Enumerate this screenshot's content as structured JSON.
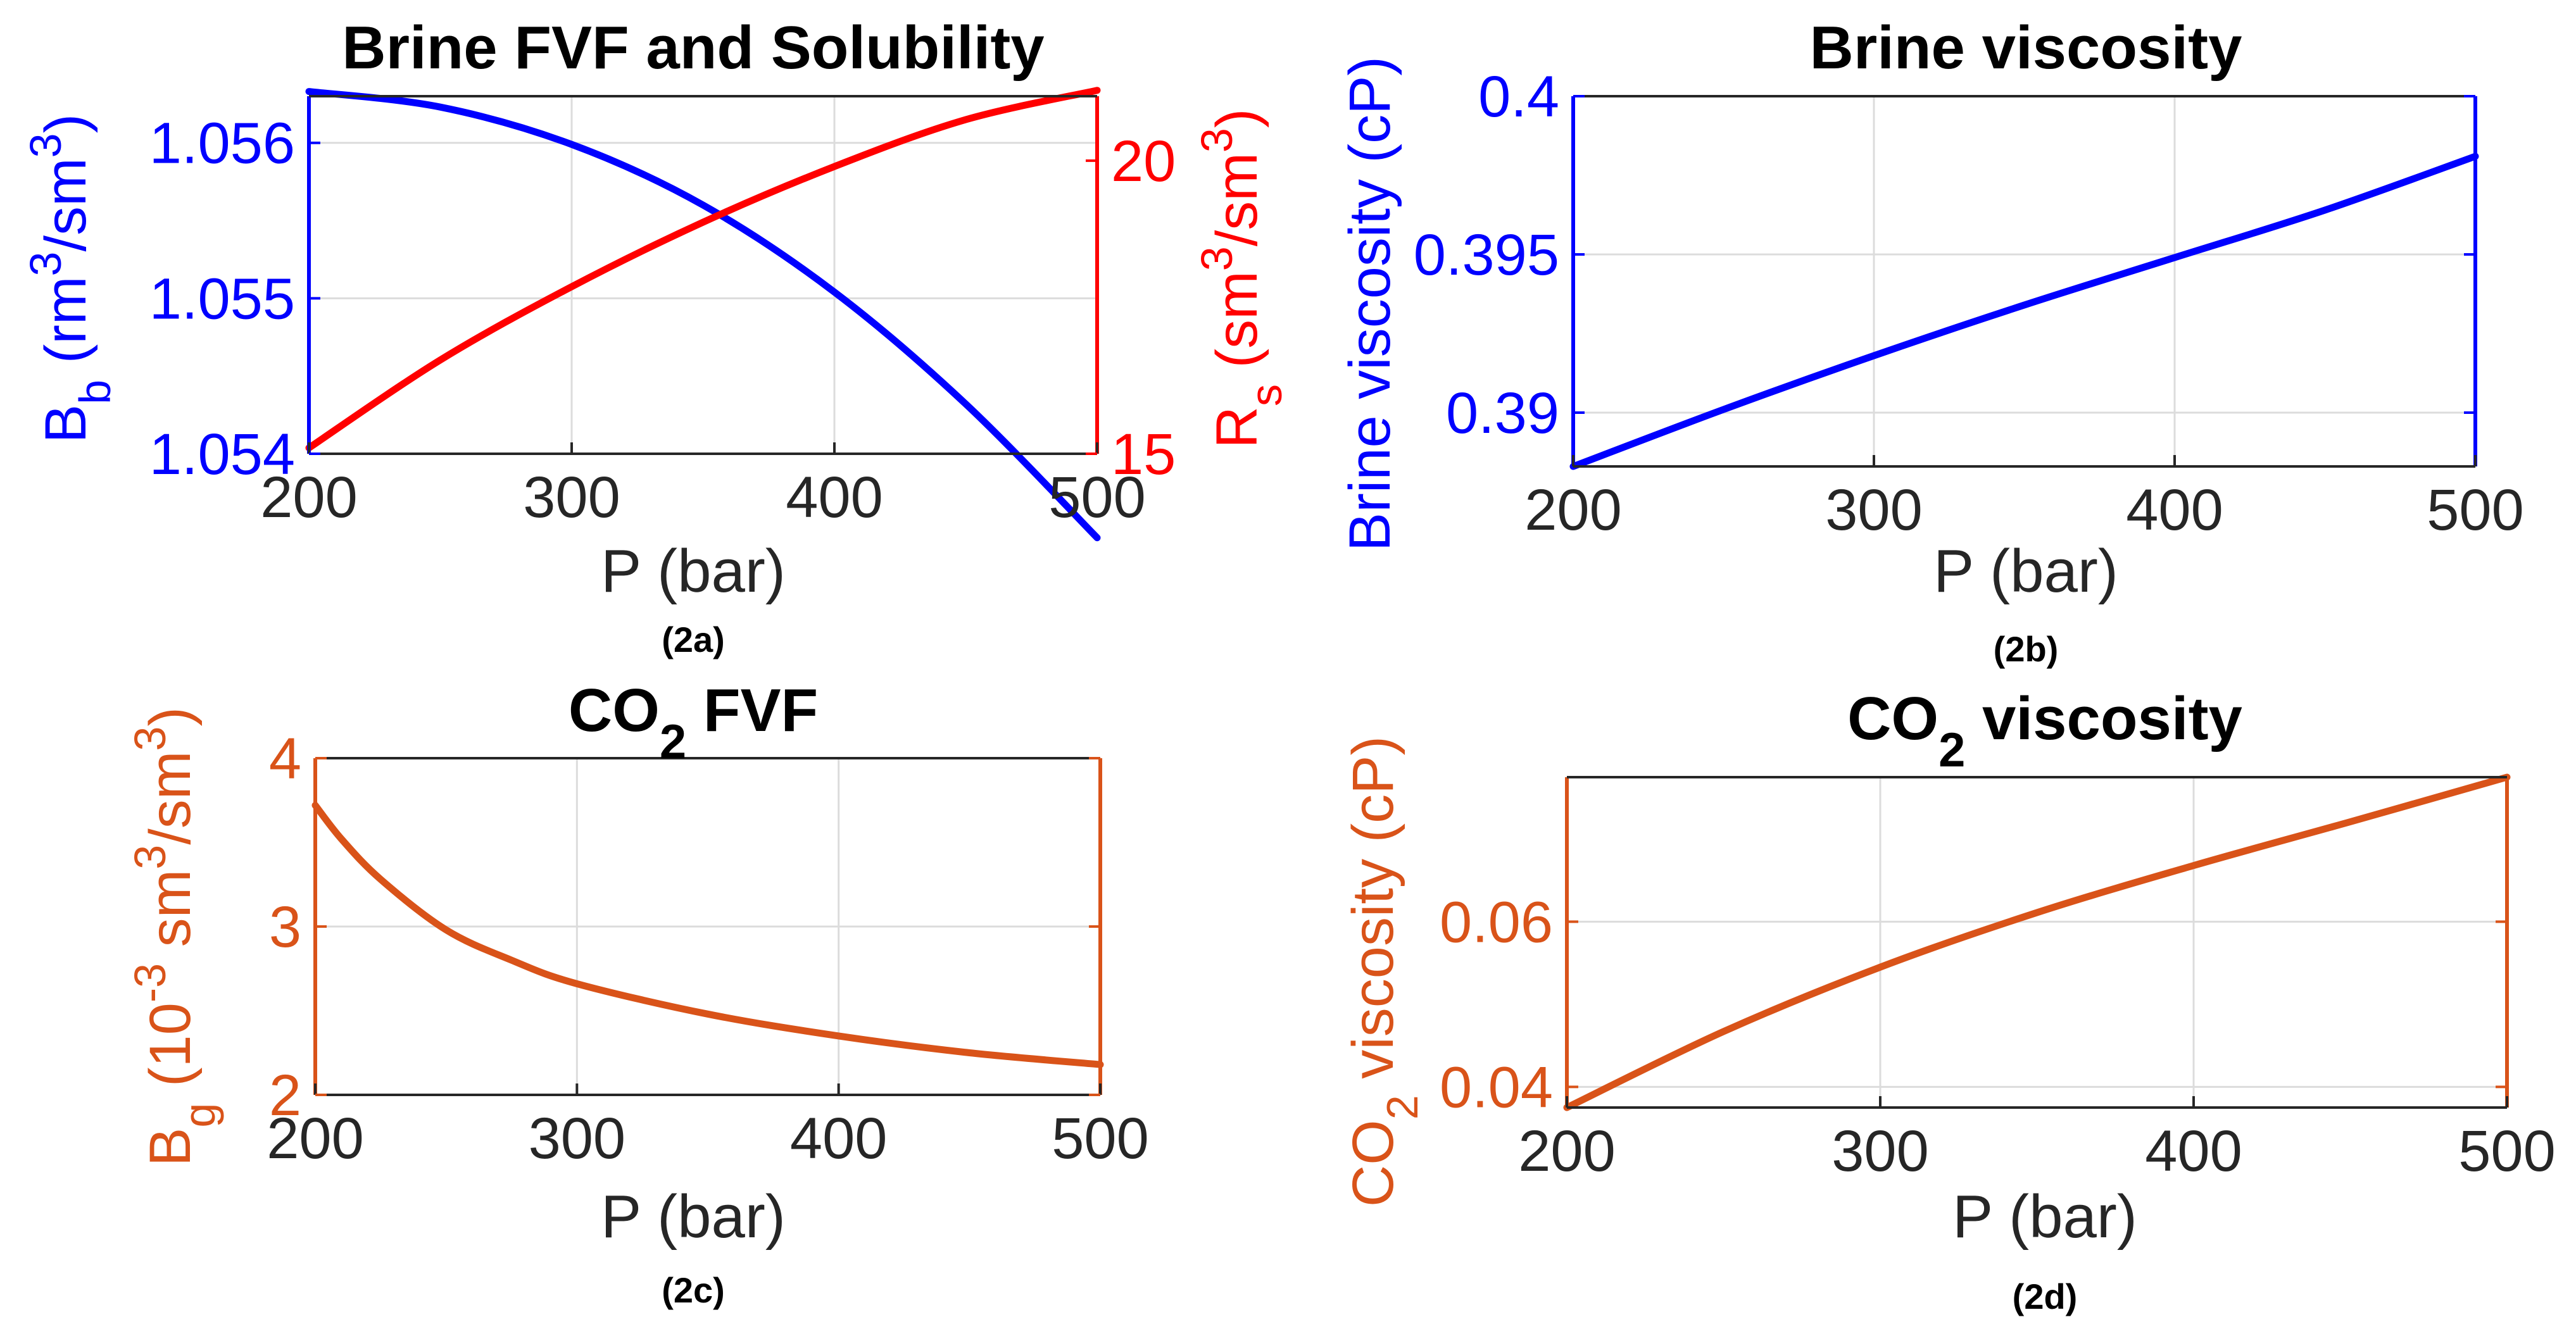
{
  "colors": {
    "blue": "#0000ff",
    "red": "#ff0000",
    "orange": "#d95319",
    "text": "#262626"
  },
  "chart_data": [
    {
      "id": "a",
      "type": "line",
      "title": "Brine FVF and Solubility",
      "caption": "(2a)",
      "xlabel": "P (bar)",
      "x_ticks": [
        "200",
        "300",
        "400",
        "500"
      ],
      "xlim": [
        200,
        500
      ],
      "ylabel_left": {
        "main": "B",
        "sub": "b",
        "rest": " (rm",
        "sup": "3",
        "tail": "/sm",
        "sup2": "3",
        "end": ")"
      },
      "y_left_ticks": [
        "1.054",
        "1.055",
        "1.056"
      ],
      "ylim_left": [
        1.054,
        1.0563
      ],
      "ylabel_right": {
        "main": "R",
        "sub": "s",
        "rest": " (sm",
        "sup": "3",
        "tail": "/sm",
        "sup2": "3",
        "end": ")"
      },
      "y_right_ticks": [
        "15",
        "20"
      ],
      "ylim_right": [
        15,
        21.1
      ],
      "series": [
        {
          "name": "B_b",
          "axis": "left",
          "color": "#0000ff",
          "x": [
            200,
            250,
            300,
            350,
            400,
            450,
            500
          ],
          "y": [
            1.05633,
            1.05623,
            1.05599,
            1.0556,
            1.05504,
            1.05432,
            1.05346
          ]
        },
        {
          "name": "R_s",
          "axis": "right",
          "color": "#ff0000",
          "x": [
            200,
            250,
            300,
            350,
            400,
            450,
            500
          ],
          "y": [
            15.1,
            16.6,
            17.85,
            18.95,
            19.9,
            20.7,
            21.2
          ]
        }
      ]
    },
    {
      "id": "b",
      "type": "line",
      "title": "Brine viscosity",
      "caption": "(2b)",
      "xlabel": "P (bar)",
      "x_ticks": [
        "200",
        "300",
        "400",
        "500"
      ],
      "xlim": [
        200,
        500
      ],
      "ylabel": "Brine viscosity (cP)",
      "y_ticks": [
        "0.39",
        "0.395",
        "0.4"
      ],
      "ylim": [
        0.3883,
        0.4
      ],
      "series": [
        {
          "name": "Brine viscosity",
          "color": "#0000ff",
          "x": [
            200,
            250,
            300,
            350,
            400,
            450,
            500
          ],
          "y": [
            0.3883,
            0.3901,
            0.3918,
            0.3934,
            0.3949,
            0.3964,
            0.3981
          ]
        }
      ]
    },
    {
      "id": "c",
      "type": "line",
      "title": {
        "main": "CO",
        "sub": "2",
        "rest": " FVF"
      },
      "caption": "(2c)",
      "xlabel": "P (bar)",
      "x_ticks": [
        "200",
        "300",
        "400",
        "500"
      ],
      "xlim": [
        200,
        500
      ],
      "ylabel": {
        "main": "B",
        "sub": "g",
        "rest": " (10",
        "sup": "-3",
        "tail": " sm",
        "sup2": "3",
        "end": "/sm",
        "sup3": "3",
        "close": ")"
      },
      "y_ticks": [
        "2",
        "3",
        "4"
      ],
      "ylim": [
        2,
        4
      ],
      "series": [
        {
          "name": "B_g",
          "color": "#d95319",
          "x": [
            200,
            210,
            225,
            250,
            275,
            300,
            350,
            400,
            450,
            500
          ],
          "y": [
            3.72,
            3.52,
            3.28,
            2.98,
            2.8,
            2.66,
            2.48,
            2.35,
            2.25,
            2.18
          ]
        }
      ]
    },
    {
      "id": "d",
      "type": "line",
      "title": {
        "main": "CO",
        "sub": "2",
        "rest": " viscosity"
      },
      "caption": "(2d)",
      "xlabel": "P (bar)",
      "x_ticks": [
        "200",
        "300",
        "400",
        "500"
      ],
      "xlim": [
        200,
        500
      ],
      "ylabel": {
        "main": "CO",
        "sub": "2",
        "rest": " viscosity (cP)"
      },
      "y_ticks": [
        "0.04",
        "0.06"
      ],
      "ylim": [
        0.0375,
        0.0775
      ],
      "series": [
        {
          "name": "CO2 viscosity",
          "color": "#d95319",
          "x": [
            200,
            250,
            300,
            350,
            400,
            450,
            500
          ],
          "y": [
            0.0375,
            0.0467,
            0.0545,
            0.0611,
            0.0668,
            0.0721,
            0.0775
          ]
        }
      ]
    }
  ]
}
